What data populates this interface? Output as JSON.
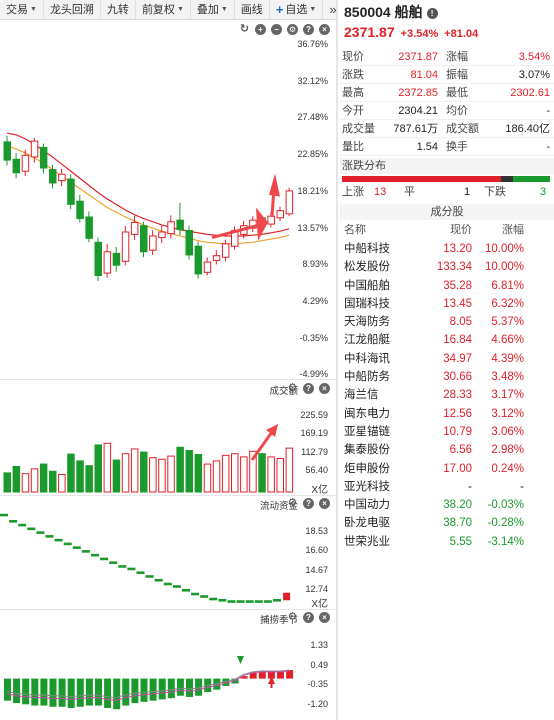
{
  "toolbar": {
    "items": [
      "交易",
      "龙头回溯",
      "九转",
      "前复权",
      "叠加",
      "画线"
    ],
    "add_label": "自选",
    "more": "»"
  },
  "main_chart": {
    "y_labels": [
      "36.76%",
      "32.12%",
      "27.48%",
      "22.85%",
      "18.21%",
      "13.57%",
      "8.93%",
      "4.29%",
      "-0.35%",
      "-4.99%"
    ],
    "candles": [
      {
        "o": 24.5,
        "c": 22.2,
        "h": 25.3,
        "l": 21.5
      },
      {
        "o": 22.3,
        "c": 20.6,
        "h": 23.1,
        "l": 19.9
      },
      {
        "o": 20.8,
        "c": 22.8,
        "h": 23.5,
        "l": 20.2
      },
      {
        "o": 22.6,
        "c": 24.6,
        "h": 25.0,
        "l": 21.9
      },
      {
        "o": 23.8,
        "c": 21.2,
        "h": 24.3,
        "l": 20.5
      },
      {
        "o": 21.0,
        "c": 19.3,
        "h": 21.6,
        "l": 18.6
      },
      {
        "o": 19.6,
        "c": 20.4,
        "h": 21.1,
        "l": 18.9
      },
      {
        "o": 19.8,
        "c": 16.6,
        "h": 20.4,
        "l": 16.0
      },
      {
        "o": 17.0,
        "c": 14.8,
        "h": 17.8,
        "l": 14.3
      },
      {
        "o": 15.0,
        "c": 12.3,
        "h": 15.7,
        "l": 11.8
      },
      {
        "o": 11.8,
        "c": 7.6,
        "h": 12.4,
        "l": 6.9
      },
      {
        "o": 7.9,
        "c": 10.6,
        "h": 11.6,
        "l": 7.3
      },
      {
        "o": 10.4,
        "c": 8.9,
        "h": 11.2,
        "l": 8.1
      },
      {
        "o": 9.4,
        "c": 13.1,
        "h": 13.9,
        "l": 8.9
      },
      {
        "o": 12.8,
        "c": 14.3,
        "h": 15.2,
        "l": 12.1
      },
      {
        "o": 13.9,
        "c": 10.6,
        "h": 14.4,
        "l": 9.9
      },
      {
        "o": 10.8,
        "c": 12.6,
        "h": 13.3,
        "l": 10.2
      },
      {
        "o": 12.4,
        "c": 13.1,
        "h": 13.9,
        "l": 11.7
      },
      {
        "o": 12.9,
        "c": 14.4,
        "h": 15.2,
        "l": 12.3
      },
      {
        "o": 14.6,
        "c": 13.4,
        "h": 16.8,
        "l": 12.7
      },
      {
        "o": 13.3,
        "c": 10.2,
        "h": 13.9,
        "l": 9.6
      },
      {
        "o": 11.3,
        "c": 7.8,
        "h": 11.9,
        "l": 7.2
      },
      {
        "o": 8.0,
        "c": 9.3,
        "h": 9.9,
        "l": 7.6
      },
      {
        "o": 9.5,
        "c": 10.1,
        "h": 10.8,
        "l": 9.0
      },
      {
        "o": 9.9,
        "c": 11.6,
        "h": 12.1,
        "l": 9.4
      },
      {
        "o": 11.3,
        "c": 13.3,
        "h": 13.8,
        "l": 10.9
      },
      {
        "o": 12.8,
        "c": 13.9,
        "h": 14.5,
        "l": 12.3
      },
      {
        "o": 13.6,
        "c": 14.6,
        "h": 15.1,
        "l": 13.1
      },
      {
        "o": 14.9,
        "c": 14.4,
        "h": 15.3,
        "l": 13.8
      },
      {
        "o": 14.1,
        "c": 15.1,
        "h": 15.6,
        "l": 13.7
      },
      {
        "o": 14.9,
        "c": 15.8,
        "h": 16.3,
        "l": 14.5
      },
      {
        "o": 15.4,
        "c": 18.3,
        "h": 18.7,
        "l": 15.1
      }
    ],
    "ma_red": [
      25.6,
      25.4,
      24.9,
      24.2,
      23.4,
      22.6,
      21.7,
      20.8,
      19.9,
      19.0,
      18.1,
      17.3,
      16.6,
      15.9,
      15.3,
      14.8,
      14.4,
      14.0,
      13.7,
      13.4,
      13.2,
      13.0,
      12.8,
      12.7,
      12.6,
      12.6,
      12.6,
      12.7,
      12.8,
      13.0,
      13.2,
      13.5
    ],
    "ma_orange": [
      24.0,
      23.6,
      23.1,
      22.5,
      21.8,
      21.0,
      20.2,
      19.4,
      18.6,
      17.8,
      17.0,
      16.2,
      15.6,
      15.0,
      14.5,
      14.0,
      13.6,
      13.2,
      12.9,
      12.6,
      12.3,
      12.0,
      11.8,
      11.7,
      11.6,
      11.6,
      11.7,
      11.8,
      12.0,
      12.2,
      12.4,
      12.7
    ]
  },
  "volume_panel": {
    "title": "成交额",
    "y_labels": [
      "225.59",
      "169.19",
      "112.79",
      "56.40"
    ],
    "unit": "X亿",
    "bars": [
      {
        "v": 48,
        "up": false
      },
      {
        "v": 64,
        "up": false
      },
      {
        "v": 46,
        "up": true
      },
      {
        "v": 58,
        "up": true
      },
      {
        "v": 70,
        "up": false
      },
      {
        "v": 52,
        "up": false
      },
      {
        "v": 44,
        "up": true
      },
      {
        "v": 95,
        "up": false
      },
      {
        "v": 78,
        "up": false
      },
      {
        "v": 66,
        "up": false
      },
      {
        "v": 118,
        "up": false
      },
      {
        "v": 122,
        "up": true
      },
      {
        "v": 80,
        "up": false
      },
      {
        "v": 96,
        "up": true
      },
      {
        "v": 108,
        "up": true
      },
      {
        "v": 100,
        "up": false
      },
      {
        "v": 86,
        "up": true
      },
      {
        "v": 82,
        "up": true
      },
      {
        "v": 90,
        "up": true
      },
      {
        "v": 112,
        "up": false
      },
      {
        "v": 104,
        "up": false
      },
      {
        "v": 94,
        "up": false
      },
      {
        "v": 70,
        "up": true
      },
      {
        "v": 78,
        "up": true
      },
      {
        "v": 92,
        "up": true
      },
      {
        "v": 96,
        "up": true
      },
      {
        "v": 88,
        "up": true
      },
      {
        "v": 102,
        "up": true
      },
      {
        "v": 96,
        "up": false
      },
      {
        "v": 88,
        "up": true
      },
      {
        "v": 84,
        "up": true
      },
      {
        "v": 110,
        "up": true
      }
    ]
  },
  "flow_panel": {
    "title": "流动资金",
    "y_labels": [
      "18.53",
      "16.60",
      "14.67",
      "12.74"
    ],
    "unit": "X亿",
    "steps": [
      19.2,
      18.7,
      18.4,
      18.1,
      17.8,
      17.5,
      17.2,
      16.9,
      16.6,
      16.3,
      16.0,
      15.7,
      15.4,
      15.1,
      14.9,
      14.6,
      14.3,
      14.0,
      13.7,
      13.5,
      13.2,
      12.9,
      12.7,
      12.5,
      12.4,
      12.3,
      12.3,
      12.3,
      12.3,
      12.3,
      12.4,
      12.9
    ]
  },
  "catch_panel": {
    "title": "捕捞季节",
    "y_labels": [
      "1.33",
      "0.49",
      "-0.35",
      "-1.20"
    ],
    "bars": [
      -0.9,
      -1.0,
      -1.05,
      -1.1,
      -1.1,
      -1.15,
      -1.15,
      -1.2,
      -1.15,
      -1.1,
      -1.1,
      -1.2,
      -1.25,
      -1.1,
      -1.0,
      -0.95,
      -0.9,
      -0.85,
      -0.8,
      -0.7,
      -0.75,
      -0.7,
      -0.55,
      -0.45,
      -0.3,
      -0.2,
      0.1,
      0.25,
      0.3,
      0.3,
      0.3,
      0.35
    ]
  },
  "quote": {
    "code_name": "850004 船舶",
    "price": "2371.87",
    "pct": "+3.54%",
    "chg": "+81.04",
    "rows": [
      {
        "l1": "现价",
        "v1": "2371.87",
        "c1": "red",
        "l2": "涨幅",
        "v2": "3.54%",
        "c2": "red"
      },
      {
        "l1": "涨跌",
        "v1": "81.04",
        "c1": "red",
        "l2": "振幅",
        "v2": "3.07%",
        "c2": "dark"
      },
      {
        "l1": "最高",
        "v1": "2372.85",
        "c1": "red",
        "l2": "最低",
        "v2": "2302.61",
        "c2": "red"
      },
      {
        "l1": "今开",
        "v1": "2304.21",
        "c1": "dark",
        "l2": "均价",
        "v2": "-",
        "c2": "dark"
      },
      {
        "l1": "成交量",
        "v1": "787.61万",
        "c1": "dark",
        "l2": "成交额",
        "v2": "186.40亿",
        "c2": "dark"
      },
      {
        "l1": "量比",
        "v1": "1.54",
        "c1": "dark",
        "l2": "换手",
        "v2": "-",
        "c2": "dark"
      }
    ],
    "dist_title": "涨跌分布",
    "dist": {
      "up_label": "上涨",
      "up": "13",
      "flat_label": "平",
      "flat": "1",
      "down_label": "下跌",
      "down": "3",
      "up_n": 13,
      "flat_n": 1,
      "down_n": 3
    },
    "comp_title": "成分股",
    "comp_cols": [
      "名称",
      "现价",
      "涨幅"
    ],
    "components": [
      {
        "name": "中船科技",
        "price": "13.20",
        "chg": "10.00%",
        "color": "red"
      },
      {
        "name": "松发股份",
        "price": "133.34",
        "chg": "10.00%",
        "color": "red"
      },
      {
        "name": "中国船舶",
        "price": "35.28",
        "chg": "6.81%",
        "color": "red"
      },
      {
        "name": "国瑞科技",
        "price": "13.45",
        "chg": "6.32%",
        "color": "red"
      },
      {
        "name": "天海防务",
        "price": "8.05",
        "chg": "5.37%",
        "color": "red"
      },
      {
        "name": "江龙船艇",
        "price": "16.84",
        "chg": "4.66%",
        "color": "red"
      },
      {
        "name": "中科海讯",
        "price": "34.97",
        "chg": "4.39%",
        "color": "red"
      },
      {
        "name": "中船防务",
        "price": "30.66",
        "chg": "3.48%",
        "color": "red"
      },
      {
        "name": "海兰信",
        "price": "28.33",
        "chg": "3.17%",
        "color": "red"
      },
      {
        "name": "闽东电力",
        "price": "12.56",
        "chg": "3.12%",
        "color": "red"
      },
      {
        "name": "亚星锚链",
        "price": "10.79",
        "chg": "3.06%",
        "color": "red"
      },
      {
        "name": "集泰股份",
        "price": "6.56",
        "chg": "2.98%",
        "color": "red"
      },
      {
        "name": "炬申股份",
        "price": "17.00",
        "chg": "0.24%",
        "color": "red"
      },
      {
        "name": "亚光科技",
        "price": "-",
        "chg": "-",
        "color": "dark"
      },
      {
        "name": "中国动力",
        "price": "38.20",
        "chg": "-0.03%",
        "color": "green"
      },
      {
        "name": "卧龙电驱",
        "price": "38.70",
        "chg": "-0.28%",
        "color": "green"
      },
      {
        "name": "世荣兆业",
        "price": "5.55",
        "chg": "-3.14%",
        "color": "green"
      }
    ]
  },
  "colors": {
    "up": "#e0212a",
    "down": "#1a9a2c",
    "ma_red": "#e0212a",
    "ma_orange": "#f0a030",
    "arrow": "#f0484a"
  }
}
